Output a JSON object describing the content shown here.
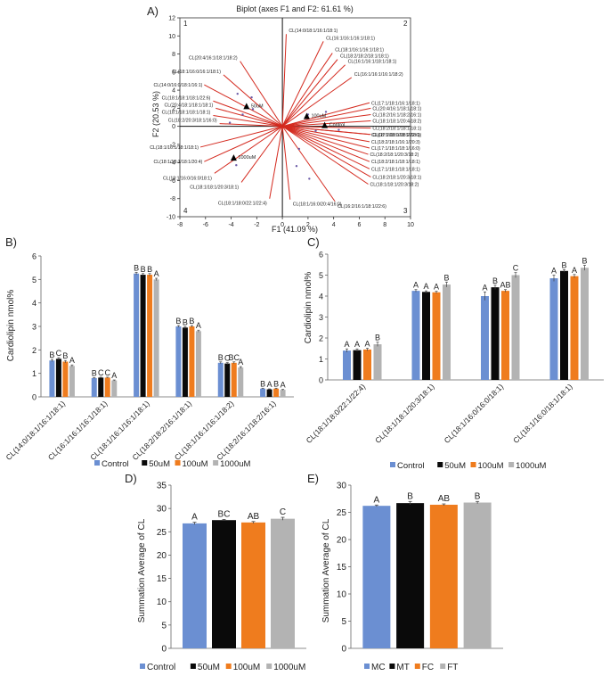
{
  "panels": {
    "A": "A)",
    "B": "B)",
    "C": "C)",
    "D": "D)",
    "E": "E)"
  },
  "colors": {
    "blue": "#6b8fd2",
    "black": "#0a0a0a",
    "orange": "#ef7c1e",
    "gray": "#b3b3b3",
    "red": "#d42a1f",
    "dot": "#6c5ca8"
  },
  "chart_data": [
    {
      "id": "A",
      "type": "scatter",
      "title": "Biplot (axes F1 and F2: 61.61 %)",
      "xlabel": "F1 (41.09 %)",
      "ylabel": "F2 (20.53 %)",
      "xlim": [
        -8,
        10
      ],
      "ylim": [
        -10,
        12
      ],
      "xticks": [
        -8,
        -6,
        -4,
        -2,
        0,
        2,
        4,
        6,
        8,
        10
      ],
      "yticks": [
        -10,
        -8,
        -6,
        -4,
        -2,
        0,
        2,
        4,
        6,
        8,
        10,
        12
      ],
      "quadrant_labels": [
        "1",
        "2",
        "3",
        "4"
      ],
      "observations": [
        {
          "name": "50uM",
          "x": -2.8,
          "y": 2.2
        },
        {
          "name": "100uM",
          "x": 1.9,
          "y": 1.1
        },
        {
          "name": "Control",
          "x": 3.3,
          "y": 0.1
        },
        {
          "name": "1000uM",
          "x": -3.8,
          "y": -3.5
        }
      ],
      "points": [
        {
          "x": -2.3,
          "y": 1.9
        },
        {
          "x": -3.1,
          "y": 1.3
        },
        {
          "x": -3.5,
          "y": 3.6
        },
        {
          "x": -2.4,
          "y": 3.2
        },
        {
          "x": -4.1,
          "y": 0.4
        },
        {
          "x": 2.0,
          "y": 1.3
        },
        {
          "x": 3.4,
          "y": 1.6
        },
        {
          "x": 4.4,
          "y": -0.4
        },
        {
          "x": 2.6,
          "y": -0.5
        },
        {
          "x": 1.1,
          "y": -4.4
        },
        {
          "x": 2.1,
          "y": -5.8
        },
        {
          "x": -3.6,
          "y": -4.3
        },
        {
          "x": 1.3,
          "y": -2.5
        }
      ],
      "vectors": [
        {
          "label": "CL(14:0/18:1/16:1/18:1)",
          "x": 0.3,
          "y": 10.2
        },
        {
          "label": "CL(16:1/16:1/16:1/18:1)",
          "x": 3.2,
          "y": 9.4
        },
        {
          "label": "CL(18:1/16:1/16:1/18:1)",
          "x": 3.9,
          "y": 8.1
        },
        {
          "label": "CL(18:2/18:2/18:1/18:1)",
          "x": 4.3,
          "y": 7.4
        },
        {
          "label": "CL(16:1/16:1/18:1/18:1)",
          "x": 4.9,
          "y": 6.8
        },
        {
          "label": "CL(16:1/16:1/16:1/18:2)",
          "x": 5.4,
          "y": 5.4
        },
        {
          "label": "CL(20:4/16:1/18:1/18:2)",
          "x": -3.3,
          "y": 7.2
        },
        {
          "label": "CL(18:1/16:0/16:1/18:1)",
          "x": -4.6,
          "y": 5.7
        },
        {
          "label": "CL(14:0/16:0/18:1/16:1)",
          "x": -6.1,
          "y": 4.6
        },
        {
          "label": "CL(18:1/18:1/18:1/22:6)",
          "x": -5.4,
          "y": 2.8
        },
        {
          "label": "CL(20:4/18:1/18:1/18:1)",
          "x": -5.2,
          "y": 2.0
        },
        {
          "label": "CL(18:1/18:1/18:1/18:1)",
          "x": -5.4,
          "y": 1.2
        },
        {
          "label": "CL(18:2/20:3/18:1/16:0)",
          "x": -4.9,
          "y": 0.3
        },
        {
          "label": "CL(18:1/16:1/18:1/18:1)",
          "x": -6.4,
          "y": -2.3
        },
        {
          "label": "CL(18:1/18:1/18:1/20:4)",
          "x": -6.1,
          "y": -3.9
        },
        {
          "label": "CL(18:1/16:0/16:0/18:1)",
          "x": -5.3,
          "y": -5.2
        },
        {
          "label": "CL(18:1/18:1/20:3/18:1)",
          "x": -3.2,
          "y": -6.2
        },
        {
          "label": "CL(18:1/18:0/22:1/22:4)",
          "x": -1.0,
          "y": -8.0
        },
        {
          "label": "CL(18:1/16:0/20:4/16:0)",
          "x": 0.6,
          "y": -8.1
        },
        {
          "label": "CL(16:2/16:1/18:1/22:6)",
          "x": 4.1,
          "y": -8.3
        },
        {
          "label": "CL(18:1/18:1/20:3/18:2)",
          "x": 6.7,
          "y": -6.4
        },
        {
          "label": "CL(18:2/18:1/20:3/18:1)",
          "x": 6.9,
          "y": -5.6
        },
        {
          "label": "CL(17:1/18:1/18:1/18:1)",
          "x": 6.8,
          "y": -4.7
        },
        {
          "label": "CL(18:2/18:1/18:1/18:1)",
          "x": 6.8,
          "y": -3.9
        },
        {
          "label": "CL(18:2/18:1/20:3/18:2)",
          "x": 6.7,
          "y": -3.1
        },
        {
          "label": "CL(17:1/18:1/18:1/16:0)",
          "x": 6.8,
          "y": -2.4
        },
        {
          "label": "CL(18:2/18:1/16:1/20:3)",
          "x": 6.8,
          "y": -1.7
        },
        {
          "label": "CL(18:1/18:1/18:1/22:6)",
          "x": 6.8,
          "y": -0.9
        },
        {
          "label": "CL(18:2/18:1/18:1/18:1)",
          "x": 6.9,
          "y": -0.2
        },
        {
          "label": "CL(17:1/18:1/18:2/18:1)",
          "x": 6.9,
          "y": -0.9
        },
        {
          "label": "CL(18:1/18:1/20:4/18:2)",
          "x": 6.9,
          "y": 0.6
        },
        {
          "label": "CL(18:2/16:1/18:2/16:1)",
          "x": 6.9,
          "y": 1.3
        },
        {
          "label": "CL(20:4/16:1/18:1/18:1)",
          "x": 6.9,
          "y": 2.0
        },
        {
          "label": "CL(17:1/18:1/16:1/18:1)",
          "x": 6.8,
          "y": 2.6
        }
      ]
    },
    {
      "id": "B",
      "type": "bar",
      "ylabel": "Cardiolipin nmol%",
      "ylim": [
        0,
        6
      ],
      "yticks": [
        0,
        1,
        2,
        3,
        4,
        5,
        6
      ],
      "categories": [
        "CL(14:0/18:1/16:1/18:1)",
        "CL(16:1/16:1/16:1/18:1)",
        "CL(18:1/16:1/16:1/18:1)",
        "CL(18:2/18:2/16:1/18:1)",
        "CL(18:1/16:1/16:1/18:2)",
        "CL(18:2/16:1/18:2/16:1)"
      ],
      "series": [
        {
          "name": "Control",
          "values": [
            1.55,
            0.8,
            5.25,
            3.0,
            1.45,
            0.35
          ],
          "errors": [
            0.05,
            0.02,
            0.05,
            0.04,
            0.04,
            0.02
          ]
        },
        {
          "name": "50uM",
          "values": [
            1.62,
            0.82,
            5.2,
            2.95,
            1.42,
            0.32
          ],
          "errors": [
            0.05,
            0.02,
            0.05,
            0.04,
            0.04,
            0.02
          ]
        },
        {
          "name": "100uM",
          "values": [
            1.5,
            0.82,
            5.2,
            3.0,
            1.45,
            0.35
          ],
          "errors": [
            0.05,
            0.02,
            0.05,
            0.04,
            0.04,
            0.02
          ]
        },
        {
          "name": "1000uM",
          "values": [
            1.32,
            0.7,
            5.0,
            2.8,
            1.25,
            0.3
          ],
          "errors": [
            0.04,
            0.02,
            0.05,
            0.04,
            0.04,
            0.02
          ]
        }
      ],
      "letters": [
        [
          "B",
          "C",
          "B",
          "A"
        ],
        [
          "B",
          "C",
          "C",
          "A"
        ],
        [
          "B",
          "B",
          "B",
          "A"
        ],
        [
          "B",
          "B",
          "B",
          "A"
        ],
        [
          "B",
          "C",
          "BC",
          "A"
        ],
        [
          "B",
          "A",
          "B",
          "A"
        ]
      ]
    },
    {
      "id": "C",
      "type": "bar",
      "ylabel": "Cardiolipin nmol%",
      "ylim": [
        0,
        6
      ],
      "yticks": [
        0,
        1,
        2,
        3,
        4,
        5,
        6
      ],
      "categories": [
        "CL(18:1/18:0/22:1/22:4)",
        "CL(18:1/18:1/20:3/18:1)",
        "CL(18:1/16:0/16:0/18:1)",
        "CL(18:1/16:0/18:1/18:1)"
      ],
      "series": [
        {
          "name": "Control",
          "values": [
            1.4,
            4.25,
            4.0,
            4.85
          ],
          "errors": [
            0.08,
            0.06,
            0.2,
            0.15
          ]
        },
        {
          "name": "50uM",
          "values": [
            1.42,
            4.2,
            4.42,
            5.2
          ],
          "errors": [
            0.06,
            0.05,
            0.1,
            0.06
          ]
        },
        {
          "name": "100uM",
          "values": [
            1.45,
            4.18,
            4.25,
            4.95
          ],
          "errors": [
            0.06,
            0.05,
            0.06,
            0.08
          ]
        },
        {
          "name": "1000uM",
          "values": [
            1.7,
            4.55,
            5.0,
            5.35
          ],
          "errors": [
            0.1,
            0.12,
            0.12,
            0.12
          ]
        }
      ],
      "letters": [
        [
          "A",
          "A",
          "A",
          "B"
        ],
        [
          "A",
          "A",
          "A",
          "B"
        ],
        [
          "A",
          "B",
          "AB",
          "C"
        ],
        [
          "A",
          "B",
          "A",
          "B"
        ]
      ]
    },
    {
      "id": "D",
      "type": "bar",
      "ylabel": "Summation Average of CL",
      "ylim": [
        0,
        35
      ],
      "yticks": [
        0,
        5,
        10,
        15,
        20,
        25,
        30,
        35
      ],
      "categories": [
        "Control",
        "50uM",
        "100uM",
        "1000uM"
      ],
      "values": [
        26.8,
        27.5,
        27.0,
        27.8
      ],
      "errors": [
        0.25,
        0.15,
        0.2,
        0.3
      ],
      "letters": [
        "A",
        "BC",
        "AB",
        "C"
      ]
    },
    {
      "id": "E",
      "type": "bar",
      "ylabel": "Summation Average of CL",
      "ylim": [
        0,
        30
      ],
      "yticks": [
        0,
        5,
        10,
        15,
        20,
        25,
        30
      ],
      "categories": [
        "MC",
        "MT",
        "FC",
        "FT"
      ],
      "values": [
        26.2,
        26.7,
        26.4,
        26.8
      ],
      "errors": [
        0.15,
        0.3,
        0.15,
        0.2
      ],
      "letters": [
        "A",
        "B",
        "AB",
        "B"
      ]
    }
  ]
}
